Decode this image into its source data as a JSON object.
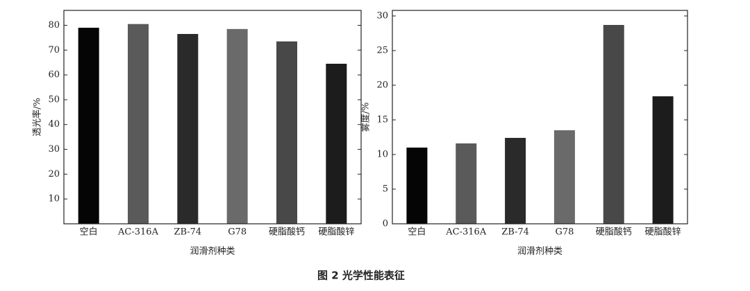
{
  "chart_data": [
    {
      "type": "bar",
      "y_label": "透光率/%",
      "x_label": "润滑剂种类",
      "categories": [
        "空白",
        "AC-316A",
        "ZB-74",
        "G78",
        "硬脂酸钙",
        "硬脂酸锌"
      ],
      "values": [
        79,
        80.5,
        76.5,
        78.5,
        73.5,
        64.5
      ],
      "colors": [
        "#050505",
        "#5a5a5a",
        "#2a2a2a",
        "#6a6a6a",
        "#484848",
        "#1c1c1c"
      ],
      "ylim": [
        0,
        86
      ],
      "yticks": [
        10,
        20,
        30,
        40,
        50,
        60,
        70,
        80
      ]
    },
    {
      "type": "bar",
      "y_label": "雾度/%",
      "x_label": "润滑剂种类",
      "categories": [
        "空白",
        "AC-316A",
        "ZB-74",
        "G78",
        "硬脂酸钙",
        "硬脂酸锌"
      ],
      "values": [
        11,
        11.6,
        12.4,
        13.5,
        28.7,
        18.4
      ],
      "colors": [
        "#050505",
        "#5a5a5a",
        "#2a2a2a",
        "#6a6a6a",
        "#484848",
        "#1c1c1c"
      ],
      "ylim": [
        0,
        30.8
      ],
      "yticks": [
        0,
        5,
        10,
        15,
        20,
        25,
        30
      ]
    }
  ],
  "caption": "图 2   光学性能表征"
}
